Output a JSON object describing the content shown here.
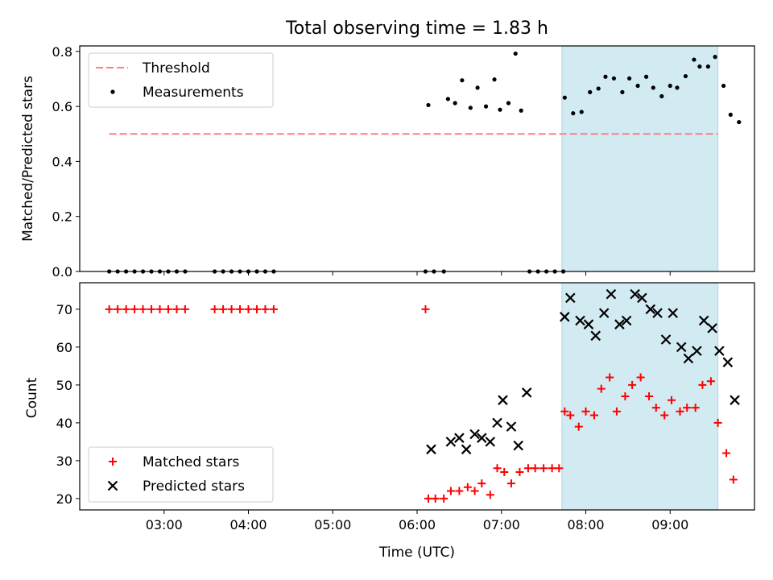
{
  "figure": {
    "title": "Total observing time = 1.83 h",
    "xlabel": "Time (UTC)"
  },
  "chart_data": [
    {
      "type": "scatter",
      "ylabel": "Matched/Predicted stars",
      "xlim": [
        "02:00",
        "10:00"
      ],
      "ylim": [
        0,
        0.82
      ],
      "xticks": [
        "03:00",
        "04:00",
        "05:00",
        "06:00",
        "07:00",
        "08:00",
        "09:00"
      ],
      "yticks": [
        0.0,
        0.2,
        0.4,
        0.6,
        0.8
      ],
      "ytick_labels": [
        "0.0",
        "0.2",
        "0.4",
        "0.6",
        "0.8"
      ],
      "legend_position": "top-left",
      "shaded_span": {
        "start": "07:43",
        "end": "09:34",
        "color": "#add8e6"
      },
      "threshold": {
        "name": "Threshold",
        "y": 0.5,
        "x_start": "02:21",
        "x_end": "09:34",
        "color": "#ff7f7f",
        "style": "dashed"
      },
      "series": [
        {
          "name": "Measurements",
          "marker": "dot",
          "color": "#000000",
          "points": [
            [
              "02:21",
              0.0
            ],
            [
              "02:27",
              0.0
            ],
            [
              "02:33",
              0.0
            ],
            [
              "02:39",
              0.0
            ],
            [
              "02:45",
              0.0
            ],
            [
              "02:51",
              0.0
            ],
            [
              "02:57",
              0.0
            ],
            [
              "03:03",
              0.0
            ],
            [
              "03:09",
              0.0
            ],
            [
              "03:15",
              0.0
            ],
            [
              "03:36",
              0.0
            ],
            [
              "03:42",
              0.0
            ],
            [
              "03:48",
              0.0
            ],
            [
              "03:54",
              0.0
            ],
            [
              "04:00",
              0.0
            ],
            [
              "04:06",
              0.0
            ],
            [
              "04:12",
              0.0
            ],
            [
              "04:18",
              0.0
            ],
            [
              "06:06",
              0.0
            ],
            [
              "06:12",
              0.0
            ],
            [
              "06:19",
              0.0
            ],
            [
              "06:08",
              0.605
            ],
            [
              "06:22",
              0.627
            ],
            [
              "06:27",
              0.612
            ],
            [
              "06:32",
              0.695
            ],
            [
              "06:38",
              0.595
            ],
            [
              "06:43",
              0.668
            ],
            [
              "06:49",
              0.6
            ],
            [
              "06:55",
              0.698
            ],
            [
              "06:59",
              0.588
            ],
            [
              "07:05",
              0.612
            ],
            [
              "07:10",
              0.792
            ],
            [
              "07:14",
              0.585
            ],
            [
              "07:20",
              0.0
            ],
            [
              "07:26",
              0.0
            ],
            [
              "07:32",
              0.0
            ],
            [
              "07:38",
              0.0
            ],
            [
              "07:44",
              0.0
            ],
            [
              "07:45",
              0.632
            ],
            [
              "07:51",
              0.575
            ],
            [
              "07:57",
              0.58
            ],
            [
              "08:03",
              0.652
            ],
            [
              "08:09",
              0.665
            ],
            [
              "08:14",
              0.708
            ],
            [
              "08:20",
              0.702
            ],
            [
              "08:26",
              0.652
            ],
            [
              "08:31",
              0.702
            ],
            [
              "08:37",
              0.675
            ],
            [
              "08:43",
              0.708
            ],
            [
              "08:48",
              0.668
            ],
            [
              "08:54",
              0.637
            ],
            [
              "09:00",
              0.675
            ],
            [
              "09:05",
              0.668
            ],
            [
              "09:11",
              0.71
            ],
            [
              "09:17",
              0.77
            ],
            [
              "09:21",
              0.745
            ],
            [
              "09:27",
              0.745
            ],
            [
              "09:32",
              0.78
            ],
            [
              "09:38",
              0.675
            ],
            [
              "09:43",
              0.57
            ],
            [
              "09:49",
              0.543
            ]
          ]
        }
      ]
    },
    {
      "type": "scatter",
      "ylabel": "Count",
      "xlim": [
        "02:00",
        "10:00"
      ],
      "ylim": [
        17,
        77
      ],
      "xticks": [
        "03:00",
        "04:00",
        "05:00",
        "06:00",
        "07:00",
        "08:00",
        "09:00"
      ],
      "yticks": [
        20,
        30,
        40,
        50,
        60,
        70
      ],
      "legend_position": "bottom-left",
      "shaded_span": {
        "start": "07:43",
        "end": "09:34",
        "color": "#add8e6"
      },
      "series": [
        {
          "name": "Matched stars",
          "marker": "plus",
          "color": "#ff0000",
          "points": [
            [
              "02:21",
              70
            ],
            [
              "02:27",
              70
            ],
            [
              "02:33",
              70
            ],
            [
              "02:39",
              70
            ],
            [
              "02:45",
              70
            ],
            [
              "02:51",
              70
            ],
            [
              "02:57",
              70
            ],
            [
              "03:03",
              70
            ],
            [
              "03:09",
              70
            ],
            [
              "03:15",
              70
            ],
            [
              "03:36",
              70
            ],
            [
              "03:42",
              70
            ],
            [
              "03:48",
              70
            ],
            [
              "03:54",
              70
            ],
            [
              "04:00",
              70
            ],
            [
              "04:06",
              70
            ],
            [
              "04:12",
              70
            ],
            [
              "04:18",
              70
            ],
            [
              "06:06",
              70
            ],
            [
              "06:08",
              20
            ],
            [
              "06:13",
              20
            ],
            [
              "06:19",
              20
            ],
            [
              "06:24",
              22
            ],
            [
              "06:30",
              22
            ],
            [
              "06:36",
              23
            ],
            [
              "06:41",
              22
            ],
            [
              "06:46",
              24
            ],
            [
              "06:52",
              21
            ],
            [
              "06:57",
              28
            ],
            [
              "07:02",
              27
            ],
            [
              "07:07",
              24
            ],
            [
              "07:13",
              27
            ],
            [
              "07:19",
              28
            ],
            [
              "07:24",
              28
            ],
            [
              "07:30",
              28
            ],
            [
              "07:36",
              28
            ],
            [
              "07:41",
              28
            ],
            [
              "07:45",
              43
            ],
            [
              "07:49",
              42
            ],
            [
              "07:55",
              39
            ],
            [
              "08:00",
              43
            ],
            [
              "08:06",
              42
            ],
            [
              "08:11",
              49
            ],
            [
              "08:17",
              52
            ],
            [
              "08:22",
              43
            ],
            [
              "08:28",
              47
            ],
            [
              "08:33",
              50
            ],
            [
              "08:39",
              52
            ],
            [
              "08:45",
              47
            ],
            [
              "08:50",
              44
            ],
            [
              "08:56",
              42
            ],
            [
              "09:01",
              46
            ],
            [
              "09:07",
              43
            ],
            [
              "09:12",
              44
            ],
            [
              "09:18",
              44
            ],
            [
              "09:23",
              50
            ],
            [
              "09:29",
              51
            ],
            [
              "09:34",
              40
            ],
            [
              "09:40",
              32
            ],
            [
              "09:45",
              25
            ]
          ]
        },
        {
          "name": "Predicted stars",
          "marker": "x",
          "color": "#000000",
          "points": [
            [
              "06:10",
              33
            ],
            [
              "06:24",
              35
            ],
            [
              "06:30",
              36
            ],
            [
              "06:35",
              33
            ],
            [
              "06:41",
              37
            ],
            [
              "06:46",
              36
            ],
            [
              "06:52",
              35
            ],
            [
              "06:57",
              40
            ],
            [
              "07:01",
              46
            ],
            [
              "07:07",
              39
            ],
            [
              "07:12",
              34
            ],
            [
              "07:18",
              48
            ],
            [
              "07:45",
              68
            ],
            [
              "07:49",
              73
            ],
            [
              "07:56",
              67
            ],
            [
              "08:02",
              66
            ],
            [
              "08:07",
              63
            ],
            [
              "08:13",
              69
            ],
            [
              "08:18",
              74
            ],
            [
              "08:24",
              66
            ],
            [
              "08:29",
              67
            ],
            [
              "08:35",
              74
            ],
            [
              "08:40",
              73
            ],
            [
              "08:46",
              70
            ],
            [
              "08:51",
              69
            ],
            [
              "08:57",
              62
            ],
            [
              "09:02",
              69
            ],
            [
              "09:08",
              60
            ],
            [
              "09:13",
              57
            ],
            [
              "09:19",
              59
            ],
            [
              "09:24",
              67
            ],
            [
              "09:30",
              65
            ],
            [
              "09:35",
              59
            ],
            [
              "09:41",
              56
            ],
            [
              "09:46",
              46
            ]
          ]
        }
      ]
    }
  ]
}
